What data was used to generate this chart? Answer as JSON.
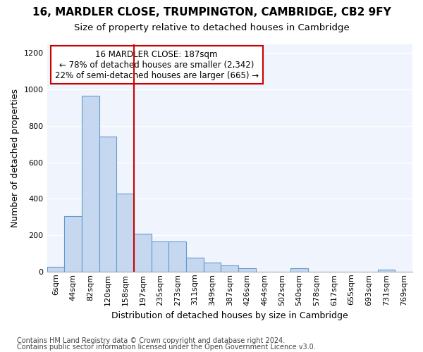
{
  "title1": "16, MARDLER CLOSE, TRUMPINGTON, CAMBRIDGE, CB2 9FY",
  "title2": "Size of property relative to detached houses in Cambridge",
  "xlabel": "Distribution of detached houses by size in Cambridge",
  "ylabel": "Number of detached properties",
  "categories": [
    "6sqm",
    "44sqm",
    "82sqm",
    "120sqm",
    "158sqm",
    "197sqm",
    "235sqm",
    "273sqm",
    "311sqm",
    "349sqm",
    "387sqm",
    "426sqm",
    "464sqm",
    "502sqm",
    "540sqm",
    "578sqm",
    "617sqm",
    "655sqm",
    "693sqm",
    "731sqm",
    "769sqm"
  ],
  "values": [
    25,
    305,
    965,
    740,
    430,
    210,
    165,
    165,
    75,
    48,
    35,
    18,
    0,
    0,
    18,
    0,
    0,
    0,
    0,
    12,
    0
  ],
  "bar_color": "#c5d8f0",
  "bar_edge_color": "#6699cc",
  "vline_pos": 4.5,
  "vline_color": "#cc0000",
  "annotation_line1": "16 MARDLER CLOSE: 187sqm",
  "annotation_line2": "← 78% of detached houses are smaller (2,342)",
  "annotation_line3": "22% of semi-detached houses are larger (665) →",
  "annotation_box_facecolor": "#ffffff",
  "annotation_box_edgecolor": "#cc0000",
  "ylim": [
    0,
    1250
  ],
  "yticks": [
    0,
    200,
    400,
    600,
    800,
    1000,
    1200
  ],
  "footnote1": "Contains HM Land Registry data © Crown copyright and database right 2024.",
  "footnote2": "Contains public sector information licensed under the Open Government Licence v3.0.",
  "bg_color": "#ffffff",
  "plot_bg_color": "#f0f4fc",
  "grid_color": "#ffffff",
  "title1_fontsize": 11,
  "title2_fontsize": 9.5,
  "axis_label_fontsize": 9,
  "tick_fontsize": 8,
  "footnote_fontsize": 7
}
